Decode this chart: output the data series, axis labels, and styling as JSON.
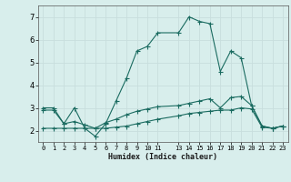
{
  "xlabel": "Humidex (Indice chaleur)",
  "bg_color": "#d8eeec",
  "line_color": "#1a6b60",
  "grid_color": "#c8dedd",
  "xlim": [
    -0.5,
    23.5
  ],
  "ylim": [
    1.5,
    7.5
  ],
  "yticks": [
    2,
    3,
    4,
    5,
    6,
    7
  ],
  "series1_x": [
    0,
    1,
    2,
    3,
    4,
    5,
    6,
    7,
    8,
    9,
    10,
    11,
    13,
    14,
    15,
    16,
    17,
    18,
    19,
    20,
    21,
    22,
    23
  ],
  "series1_y": [
    3.0,
    3.0,
    2.3,
    3.0,
    2.1,
    1.75,
    2.3,
    3.3,
    4.3,
    5.5,
    5.7,
    6.3,
    6.3,
    7.0,
    6.8,
    6.7,
    4.6,
    5.5,
    5.2,
    3.1,
    2.2,
    2.1,
    2.2
  ],
  "series2_x": [
    0,
    1,
    2,
    3,
    4,
    5,
    6,
    7,
    8,
    9,
    10,
    11,
    13,
    14,
    15,
    16,
    17,
    18,
    19,
    20,
    21,
    22,
    23
  ],
  "series2_y": [
    2.1,
    2.1,
    2.1,
    2.1,
    2.1,
    2.1,
    2.1,
    2.15,
    2.2,
    2.3,
    2.4,
    2.5,
    2.65,
    2.75,
    2.8,
    2.85,
    2.9,
    2.9,
    3.0,
    2.95,
    2.15,
    2.1,
    2.2
  ],
  "series3_x": [
    0,
    1,
    2,
    3,
    4,
    5,
    6,
    7,
    8,
    9,
    10,
    11,
    13,
    14,
    15,
    16,
    17,
    18,
    19,
    20,
    21,
    22,
    23
  ],
  "series3_y": [
    2.9,
    2.9,
    2.3,
    2.4,
    2.25,
    2.1,
    2.35,
    2.5,
    2.7,
    2.85,
    2.95,
    3.05,
    3.1,
    3.2,
    3.3,
    3.4,
    3.0,
    3.45,
    3.5,
    3.1,
    2.2,
    2.1,
    2.2
  ]
}
